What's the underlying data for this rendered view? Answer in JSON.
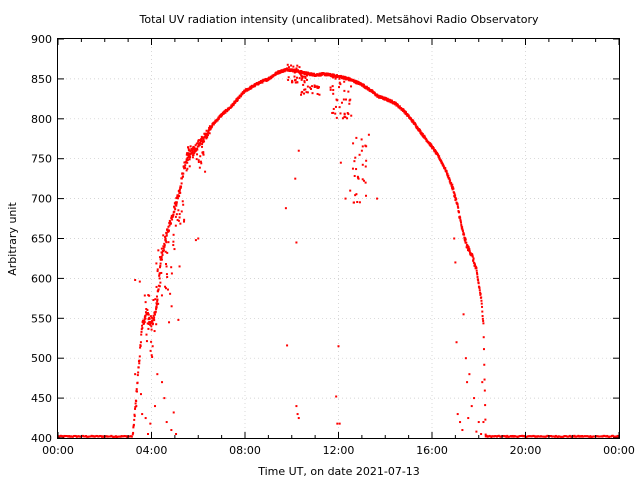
{
  "chart_data": {
    "type": "scatter",
    "title": "Total UV radiation intensity (uncalibrated). Metsähovi Radio Observatory",
    "xlabel": "Time UT, on date 2021-07-13",
    "ylabel": "Arbitrary unit",
    "xlim": [
      0,
      24
    ],
    "ylim": [
      400,
      900
    ],
    "x_tick_labels": [
      "00:00",
      "04:00",
      "08:00",
      "12:00",
      "16:00",
      "20:00",
      "00:00"
    ],
    "y_tick_labels": [
      "400",
      "450",
      "500",
      "550",
      "600",
      "650",
      "700",
      "750",
      "800",
      "850",
      "900"
    ],
    "grid": true,
    "point_color": "#ff0000",
    "x_unit": "hours UT",
    "series": [
      {
        "envelope": [
          [
            3.2,
            400
          ],
          [
            3.4,
            470
          ],
          [
            3.6,
            540
          ],
          [
            3.8,
            560
          ],
          [
            4.0,
            540
          ],
          [
            4.2,
            560
          ],
          [
            4.4,
            620
          ],
          [
            4.6,
            650
          ],
          [
            4.8,
            670
          ],
          [
            5.0,
            690
          ],
          [
            5.2,
            710
          ],
          [
            5.4,
            740
          ],
          [
            5.6,
            755
          ],
          [
            5.8,
            760
          ],
          [
            6.0,
            768
          ],
          [
            6.3,
            778
          ],
          [
            6.6,
            792
          ],
          [
            7.0,
            805
          ],
          [
            7.4,
            815
          ],
          [
            7.7,
            825
          ],
          [
            8.0,
            835
          ],
          [
            8.3,
            840
          ],
          [
            8.6,
            845
          ],
          [
            9.0,
            850
          ],
          [
            9.4,
            858
          ],
          [
            9.8,
            862
          ],
          [
            10.2,
            860
          ],
          [
            10.6,
            857
          ],
          [
            11.0,
            855
          ],
          [
            11.4,
            856
          ],
          [
            11.8,
            854
          ],
          [
            12.2,
            852
          ],
          [
            12.6,
            848
          ],
          [
            13.0,
            843
          ],
          [
            13.4,
            835
          ],
          [
            13.7,
            828
          ],
          [
            14.0,
            825
          ],
          [
            14.4,
            820
          ],
          [
            14.8,
            810
          ],
          [
            15.2,
            796
          ],
          [
            15.6,
            780
          ],
          [
            16.0,
            765
          ],
          [
            16.3,
            752
          ],
          [
            16.6,
            735
          ],
          [
            16.9,
            712
          ],
          [
            17.1,
            690
          ],
          [
            17.3,
            660
          ],
          [
            17.5,
            640
          ],
          [
            17.7,
            630
          ],
          [
            17.9,
            610
          ],
          [
            18.1,
            575
          ],
          [
            18.2,
            545
          ],
          [
            18.3,
            400
          ]
        ],
        "outliers": [
          [
            3.3,
            598
          ],
          [
            3.3,
            480
          ],
          [
            3.35,
            440
          ],
          [
            3.5,
            596
          ],
          [
            3.55,
            455
          ],
          [
            3.6,
            430
          ],
          [
            3.75,
            425
          ],
          [
            3.85,
            405
          ],
          [
            3.95,
            418
          ],
          [
            4.05,
            515
          ],
          [
            4.15,
            440
          ],
          [
            4.25,
            480
          ],
          [
            4.35,
            600
          ],
          [
            4.45,
            470
          ],
          [
            4.55,
            450
          ],
          [
            4.65,
            420
          ],
          [
            4.75,
            545
          ],
          [
            4.85,
            410
          ],
          [
            4.95,
            432
          ],
          [
            5.05,
            405
          ],
          [
            5.15,
            548
          ],
          [
            5.2,
            615
          ],
          [
            5.9,
            648
          ],
          [
            6.0,
            650
          ],
          [
            9.75,
            688
          ],
          [
            9.8,
            516
          ],
          [
            10.15,
            725
          ],
          [
            10.2,
            645
          ],
          [
            10.2,
            440
          ],
          [
            10.25,
            430
          ],
          [
            10.3,
            425
          ],
          [
            10.3,
            760
          ],
          [
            11.9,
            452
          ],
          [
            11.95,
            418
          ],
          [
            12.0,
            515
          ],
          [
            12.05,
            418
          ],
          [
            12.1,
            745
          ],
          [
            12.3,
            700
          ],
          [
            12.5,
            710
          ],
          [
            12.65,
            695
          ],
          [
            13.0,
            760
          ],
          [
            13.3,
            780
          ],
          [
            13.65,
            700
          ],
          [
            16.95,
            650
          ],
          [
            17.0,
            620
          ],
          [
            17.05,
            520
          ],
          [
            17.1,
            430
          ],
          [
            17.2,
            420
          ],
          [
            17.3,
            410
          ],
          [
            17.45,
            500
          ],
          [
            17.6,
            480
          ],
          [
            17.7,
            440
          ],
          [
            17.8,
            450
          ],
          [
            17.9,
            408
          ],
          [
            18.0,
            420
          ],
          [
            18.1,
            405
          ],
          [
            18.15,
            470
          ],
          [
            18.2,
            420
          ],
          [
            17.55,
            425
          ],
          [
            17.5,
            470
          ],
          [
            17.35,
            555
          ]
        ],
        "dip_clusters": [
          [
            10.3,
            11.2,
            830,
            858
          ],
          [
            11.6,
            12.6,
            800,
            852
          ],
          [
            12.6,
            13.2,
            695,
            780
          ],
          [
            9.8,
            10.4,
            845,
            868
          ],
          [
            4.2,
            5.0,
            560,
            660
          ],
          [
            3.7,
            4.3,
            500,
            590
          ],
          [
            5.0,
            5.4,
            660,
            710
          ],
          [
            5.5,
            6.3,
            730,
            770
          ]
        ],
        "night_start_levels": [
          0.0,
          3.2,
          402
        ],
        "night_end_levels": [
          18.3,
          24.0,
          402
        ]
      }
    ]
  }
}
